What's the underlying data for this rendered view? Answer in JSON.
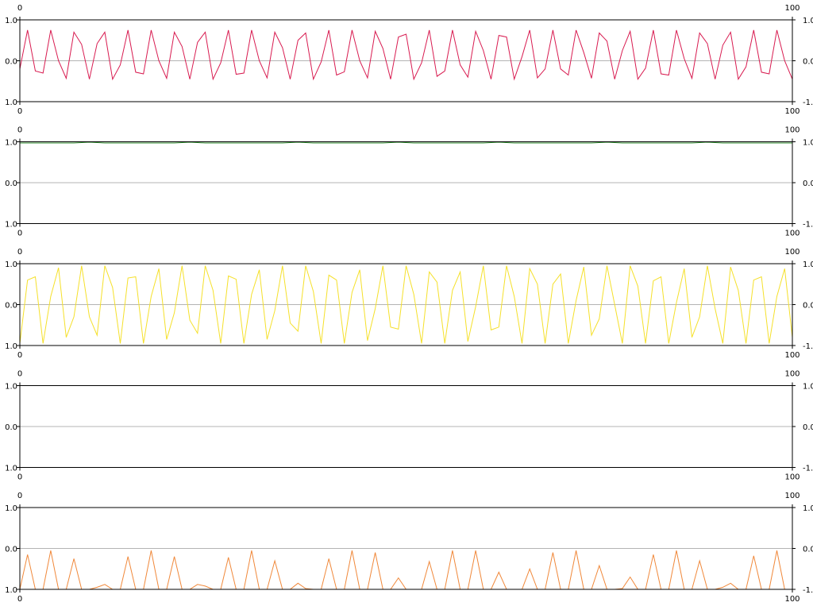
{
  "chart_data": [
    {
      "type": "line",
      "color": "#d81b50",
      "x_range": [
        0,
        100
      ],
      "ylim": [
        -1.0,
        1.0
      ],
      "x_tick_labels": [
        "0",
        "100"
      ],
      "y_tick_labels_left": [
        "1.0",
        "0.0",
        "1.0"
      ],
      "y_tick_labels_right": [
        "1.0",
        "0.0",
        "-1.0"
      ],
      "zero_line": true,
      "values": [
        -0.2,
        0.75,
        -0.25,
        -0.3,
        0.75,
        0.0,
        -0.43,
        0.7,
        0.4,
        -0.45,
        0.42,
        0.7,
        -0.45,
        -0.1,
        0.75,
        -0.28,
        -0.32,
        0.75,
        0.0,
        -0.43,
        0.7,
        0.35,
        -0.45,
        0.45,
        0.7,
        -0.45,
        -0.05,
        0.75,
        -0.33,
        -0.3,
        0.75,
        0.0,
        -0.42,
        0.7,
        0.32,
        -0.45,
        0.5,
        0.68,
        -0.45,
        -0.03,
        0.75,
        -0.35,
        -0.27,
        0.75,
        0.0,
        -0.42,
        0.72,
        0.3,
        -0.45,
        0.58,
        0.65,
        -0.45,
        -0.05,
        0.75,
        -0.38,
        -0.25,
        0.75,
        -0.1,
        -0.4,
        0.72,
        0.25,
        -0.45,
        0.62,
        0.58,
        -0.45,
        0.1,
        0.75,
        -0.42,
        -0.2,
        0.75,
        -0.2,
        -0.35,
        0.75,
        0.2,
        -0.43,
        0.68,
        0.48,
        -0.45,
        0.25,
        0.72,
        -0.45,
        -0.18,
        0.75,
        -0.32,
        -0.35,
        0.75,
        0.05,
        -0.43,
        0.68,
        0.42,
        -0.45,
        0.38,
        0.7,
        -0.45,
        -0.15,
        0.75,
        -0.28,
        -0.32,
        0.75,
        0.0,
        -0.45
      ]
    },
    {
      "type": "line",
      "color": "#2e8b2e",
      "x_range": [
        0,
        100
      ],
      "ylim": [
        -1.0,
        1.0
      ],
      "x_tick_labels": [
        "0",
        "100"
      ],
      "y_tick_labels_left": [
        "1.0",
        "0.0",
        "1.0"
      ],
      "y_tick_labels_right": [
        "1.0",
        "0.0",
        "-1.0"
      ],
      "zero_line": true,
      "values": [
        0.97,
        0.97,
        0.97,
        0.97,
        0.97,
        0.97,
        0.97,
        0.97,
        0.98,
        0.99,
        0.98,
        0.97,
        0.97,
        0.97,
        0.97,
        0.97,
        0.97,
        0.97,
        0.97,
        0.97,
        0.97,
        0.98,
        0.99,
        0.98,
        0.97,
        0.97,
        0.97,
        0.97,
        0.97,
        0.97,
        0.97,
        0.97,
        0.97,
        0.97,
        0.97,
        0.98,
        0.99,
        0.98,
        0.97,
        0.97,
        0.97,
        0.97,
        0.97,
        0.97,
        0.97,
        0.97,
        0.97,
        0.97,
        0.98,
        0.99,
        0.98,
        0.97,
        0.97,
        0.97,
        0.97,
        0.97,
        0.97,
        0.97,
        0.97,
        0.97,
        0.97,
        0.98,
        0.99,
        0.98,
        0.97,
        0.97,
        0.97,
        0.97,
        0.97,
        0.97,
        0.97,
        0.97,
        0.97,
        0.97,
        0.97,
        0.98,
        0.99,
        0.98,
        0.97,
        0.97,
        0.97,
        0.97,
        0.97,
        0.97,
        0.97,
        0.97,
        0.97,
        0.97,
        0.98,
        0.99,
        0.98,
        0.97,
        0.97,
        0.97,
        0.97,
        0.97,
        0.97,
        0.97,
        0.97,
        0.97,
        0.97
      ]
    },
    {
      "type": "line",
      "color": "#f5e02a",
      "x_range": [
        0,
        100
      ],
      "ylim": [
        -1.0,
        1.0
      ],
      "x_tick_labels": [
        "0",
        "100"
      ],
      "y_tick_labels_left": [
        "1.0",
        "0.0",
        "1.0"
      ],
      "y_tick_labels_right": [
        "1.0",
        "0.0",
        "-1.0"
      ],
      "zero_line": true,
      "values": [
        -0.95,
        0.6,
        0.68,
        -0.95,
        0.2,
        0.9,
        -0.8,
        -0.3,
        0.95,
        -0.3,
        -0.75,
        0.95,
        0.42,
        -0.95,
        0.65,
        0.68,
        -0.95,
        0.2,
        0.88,
        -0.85,
        -0.2,
        0.95,
        -0.38,
        -0.7,
        0.95,
        0.35,
        -0.95,
        0.7,
        0.62,
        -0.95,
        0.25,
        0.85,
        -0.85,
        -0.15,
        0.95,
        -0.45,
        -0.65,
        0.95,
        0.32,
        -0.95,
        0.72,
        0.6,
        -0.95,
        0.3,
        0.85,
        -0.88,
        -0.1,
        0.95,
        -0.55,
        -0.6,
        0.95,
        0.25,
        -0.95,
        0.8,
        0.55,
        -0.95,
        0.35,
        0.8,
        -0.9,
        -0.05,
        0.95,
        -0.62,
        -0.55,
        0.95,
        0.2,
        -0.95,
        0.88,
        0.5,
        -0.95,
        0.5,
        0.75,
        -0.95,
        0.1,
        0.92,
        -0.75,
        -0.35,
        0.95,
        0.0,
        -0.95,
        0.95,
        0.45,
        -0.95,
        0.58,
        0.68,
        -0.95,
        0.05,
        0.88,
        -0.8,
        -0.3,
        0.95,
        -0.1,
        -0.95,
        0.92,
        0.35,
        -0.95,
        0.6,
        0.68,
        -0.95,
        0.2,
        0.88,
        -0.8
      ]
    },
    {
      "type": "line",
      "color": "#1a2f6b",
      "x_range": [
        0,
        100
      ],
      "ylim": [
        -1.0,
        1.0
      ],
      "x_tick_labels": [
        "0",
        "100"
      ],
      "y_tick_labels_left": [
        "1.0",
        "0.0",
        "1.0"
      ],
      "y_tick_labels_right": [
        "1.0",
        "0.0",
        "-1.0"
      ],
      "zero_line": true,
      "values": [
        1.0,
        1.0,
        1.0,
        1.0,
        1.0,
        1.0,
        1.0,
        1.0,
        1.0,
        1.0,
        1.0,
        1.0,
        1.0,
        1.0,
        1.0,
        1.0,
        1.0,
        1.0,
        1.0,
        1.0,
        1.0,
        1.0,
        1.0,
        1.0,
        1.0,
        1.0,
        1.0,
        1.0,
        1.0,
        1.0,
        1.0,
        1.0,
        1.0,
        1.0,
        1.0,
        1.0,
        1.0,
        1.0,
        1.0,
        1.0,
        1.0,
        1.0,
        1.0,
        1.0,
        1.0,
        1.0,
        1.0,
        1.0,
        1.0,
        1.0,
        1.0,
        1.0,
        1.0,
        1.0,
        1.0,
        1.0,
        1.0,
        1.0,
        1.0,
        1.0,
        1.0,
        1.0,
        1.0,
        1.0,
        1.0,
        1.0,
        1.0,
        1.0,
        1.0,
        1.0,
        1.0,
        1.0,
        1.0,
        1.0,
        1.0,
        1.0,
        1.0,
        1.0,
        1.0,
        1.0,
        1.0,
        1.0,
        1.0,
        1.0,
        1.0,
        1.0,
        1.0,
        1.0,
        1.0,
        1.0,
        1.0,
        1.0,
        1.0,
        1.0,
        1.0,
        1.0,
        1.0,
        1.0,
        1.0,
        1.0,
        1.0
      ]
    },
    {
      "type": "line",
      "color": "#f0883a",
      "x_range": [
        0,
        100
      ],
      "ylim": [
        -1.0,
        1.0
      ],
      "x_tick_labels": [
        "0",
        "100"
      ],
      "y_tick_labels_left": [
        "1.0",
        "0.0",
        "1.0"
      ],
      "y_tick_labels_right": [
        "1.0",
        "0.0",
        "-1.0"
      ],
      "zero_line": true,
      "values": [
        -1.0,
        -0.15,
        -1.0,
        -1.0,
        -0.05,
        -1.0,
        -1.0,
        -0.25,
        -1.0,
        -1.0,
        -0.95,
        -0.88,
        -1.0,
        -1.0,
        -0.2,
        -1.0,
        -1.0,
        -0.05,
        -1.0,
        -1.0,
        -0.2,
        -1.0,
        -1.0,
        -0.88,
        -0.92,
        -1.0,
        -1.0,
        -0.22,
        -1.0,
        -1.0,
        -0.05,
        -1.0,
        -1.0,
        -0.3,
        -1.0,
        -1.0,
        -0.85,
        -0.98,
        -1.0,
        -1.0,
        -0.25,
        -1.0,
        -1.0,
        -0.05,
        -1.0,
        -1.0,
        -0.1,
        -1.0,
        -1.0,
        -0.72,
        -1.0,
        -1.0,
        -1.0,
        -0.32,
        -1.0,
        -1.0,
        -0.05,
        -1.0,
        -1.0,
        -0.05,
        -1.0,
        -1.0,
        -0.58,
        -1.0,
        -1.0,
        -1.0,
        -0.5,
        -1.0,
        -1.0,
        -0.1,
        -1.0,
        -1.0,
        -0.05,
        -1.0,
        -1.0,
        -0.42,
        -1.0,
        -1.0,
        -0.98,
        -0.7,
        -1.0,
        -1.0,
        -0.15,
        -1.0,
        -1.0,
        -0.05,
        -1.0,
        -1.0,
        -0.3,
        -1.0,
        -1.0,
        -0.95,
        -0.85,
        -1.0,
        -1.0,
        -0.18,
        -1.0,
        -1.0,
        -0.05,
        -1.0,
        -1.0
      ]
    }
  ]
}
